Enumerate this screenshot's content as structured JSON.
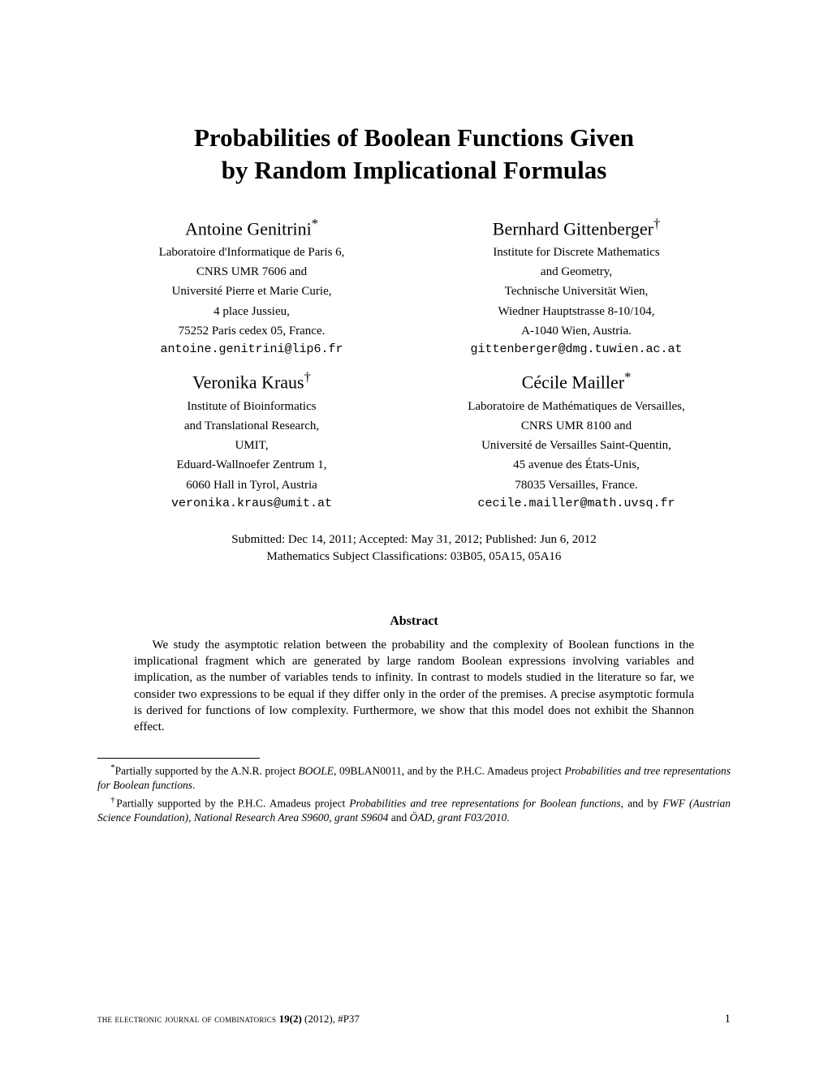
{
  "title_line1": "Probabilities of Boolean Functions Given",
  "title_line2": "by Random Implicational Formulas",
  "authors": [
    {
      "name": "Antoine Genitrini",
      "mark": "*",
      "affil": [
        "Laboratoire d'Informatique de Paris 6,",
        "CNRS UMR 7606 and",
        "Université Pierre et Marie Curie,",
        "4 place Jussieu,",
        "75252 Paris cedex 05, France."
      ],
      "email": "antoine.genitrini@lip6.fr"
    },
    {
      "name": "Bernhard Gittenberger",
      "mark": "†",
      "affil": [
        "Institute for Discrete Mathematics",
        "and Geometry,",
        "Technische Universität Wien,",
        "Wiedner Hauptstrasse 8-10/104,",
        "A-1040 Wien, Austria."
      ],
      "email": "gittenberger@dmg.tuwien.ac.at"
    },
    {
      "name": "Veronika Kraus",
      "mark": "†",
      "affil": [
        "Institute of Bioinformatics",
        "and Translational Research,",
        "UMIT,",
        "Eduard-Wallnoefer Zentrum 1,",
        "6060 Hall in Tyrol, Austria"
      ],
      "email": "veronika.kraus@umit.at"
    },
    {
      "name": "Cécile Mailler",
      "mark": "*",
      "affil": [
        "Laboratoire de Mathématiques de Versailles,",
        "CNRS UMR 8100 and",
        "Université de Versailles Saint-Quentin,",
        "45 avenue des États-Unis,",
        "78035 Versailles, France."
      ],
      "email": "cecile.mailler@math.uvsq.fr"
    }
  ],
  "submission_line": "Submitted: Dec 14, 2011; Accepted: May 31, 2012; Published: Jun 6, 2012",
  "msc_line": "Mathematics Subject Classifications: 03B05, 05A15, 05A16",
  "abstract_heading": "Abstract",
  "abstract_text": "We study the asymptotic relation between the probability and the complexity of Boolean functions in the implicational fragment which are generated by large random Boolean expressions involving variables and implication, as the number of variables tends to infinity. In contrast to models studied in the literature so far, we consider two expressions to be equal if they differ only in the order of the premises. A precise asymptotic formula is derived for functions of low complexity. Furthermore, we show that this model does not exhibit the Shannon effect.",
  "footnote1": {
    "mark": "*",
    "pre": "Partially supported by the A.N.R. project ",
    "boole": "BOOLE",
    "mid": ", 09BLAN0011, and by the P.H.C. Amadeus project ",
    "proj": "Probabilities and tree representations for Boolean functions",
    "end": "."
  },
  "footnote2": {
    "mark": "†",
    "pre": "Partially supported by the P.H.C. Amadeus project ",
    "proj": "Probabilities and tree representations for Boolean functions",
    "mid": ", and by ",
    "fwf": "FWF (Austrian Science Foundation), National Research Area S9600, grant S9604",
    "and": " and ",
    "oad": "ÖAD, grant F03/2010",
    "end": "."
  },
  "journal_pre": "the electronic journal of combinatorics ",
  "journal_vol": "19(2)",
  "journal_year": " (2012), ",
  "journal_pnum": "#P37",
  "page_number": "1"
}
